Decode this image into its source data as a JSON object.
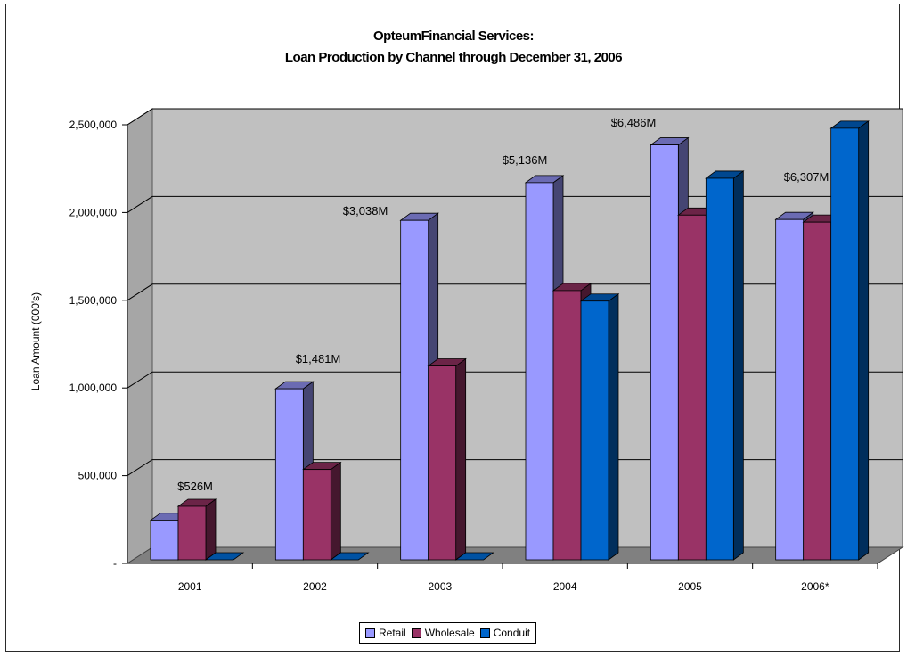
{
  "chart_data": {
    "type": "bar",
    "title": "OpteumFinancial Services:",
    "subtitle": "Loan Production by Channel through December 31, 2006",
    "ylabel": "Loan Amount (000's)",
    "xlabel": "",
    "ylim": [
      0,
      2500000
    ],
    "yticks": [
      0,
      500000,
      1000000,
      1500000,
      2000000,
      2500000
    ],
    "ytick_labels": [
      "-",
      "500,000",
      "1,000,000",
      "1,500,000",
      "2,000,000",
      "2,500,000"
    ],
    "categories": [
      "2001",
      "2002",
      "2003",
      "2004",
      "2005",
      "2006*"
    ],
    "series": [
      {
        "name": "Retail",
        "values": [
          225000,
          975000,
          1935000,
          2150000,
          2365000,
          1940000
        ]
      },
      {
        "name": "Wholesale",
        "values": [
          305000,
          515000,
          1105000,
          1535000,
          1965000,
          1925000
        ]
      },
      {
        "name": "Conduit",
        "values": [
          0,
          0,
          0,
          1475000,
          2175000,
          2460000
        ]
      }
    ],
    "annotations": [
      "$526M",
      "$1,481M",
      "$3,038M",
      "$5,136M",
      "$6,486M",
      "$6,307M"
    ],
    "grid": true,
    "legend_position": "bottom",
    "colors": {
      "Retail": "#9999ff",
      "Wholesale": "#993366",
      "Conduit": "#0066cc",
      "plot_background": "#c0c0c0"
    }
  }
}
